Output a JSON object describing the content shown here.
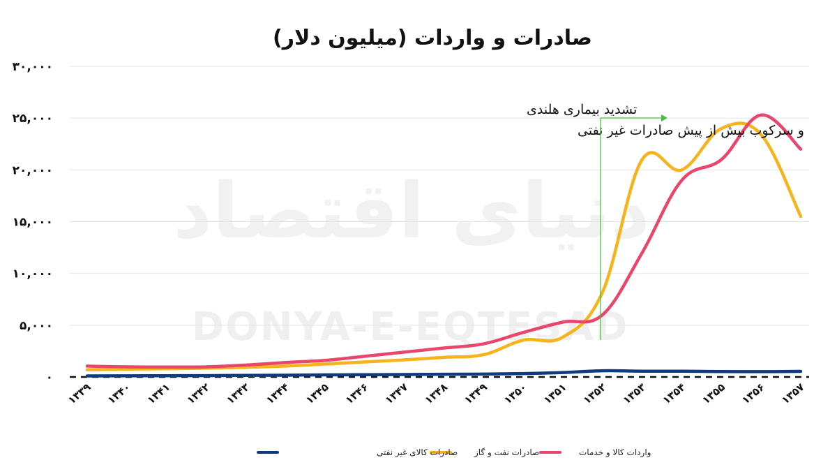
{
  "chart_data": {
    "type": "line",
    "title": "صادرات و واردات (میلیون دلار)",
    "categories": [
      "۱۳۳۹",
      "۱۳۴۰",
      "۱۳۴۱",
      "۱۳۴۲",
      "۱۳۴۳",
      "۱۳۴۴",
      "۱۳۴۵",
      "۱۳۴۶",
      "۱۳۴۷",
      "۱۳۴۸",
      "۱۳۴۹",
      "۱۳۵۰",
      "۱۳۵۱",
      "۱۳۵۲",
      "۱۳۵۳",
      "۱۳۵۴",
      "۱۳۵۵",
      "۱۳۵۶",
      "۱۳۵۷"
    ],
    "ylim": [
      0,
      30000
    ],
    "yticks": [
      0,
      5000,
      10000,
      15000,
      20000,
      25000,
      30000
    ],
    "ytick_labels": [
      "۰",
      "۵,۰۰۰",
      "۱۰,۰۰۰",
      "۱۵,۰۰۰",
      "۲۰,۰۰۰",
      "۲۵,۰۰۰",
      "۳۰,۰۰۰"
    ],
    "grid": true,
    "legend_position": "bottom",
    "series": [
      {
        "name": "صادرات کالای غیر نفتی",
        "color": "#0f3a7d",
        "values": [
          100,
          110,
          120,
          130,
          150,
          170,
          200,
          220,
          240,
          260,
          280,
          330,
          430,
          600,
          560,
          560,
          520,
          510,
          540
        ]
      },
      {
        "name": "صادرات نفت و گاز",
        "color": "#f7b31c",
        "values": [
          700,
          760,
          790,
          850,
          930,
          1050,
          1250,
          1450,
          1650,
          1900,
          2150,
          3550,
          3850,
          8200,
          21000,
          20000,
          24000,
          23400,
          15500
        ]
      },
      {
        "name": "واردات کالا و خدمات",
        "color": "#e8466b",
        "values": [
          1050,
          980,
          960,
          980,
          1150,
          1400,
          1600,
          2000,
          2400,
          2800,
          3200,
          4300,
          5300,
          6000,
          12000,
          19000,
          21000,
          25300,
          22000
        ]
      }
    ],
    "annotation": {
      "lines": [
        "تشدید بیماری هلندی",
        "و سرکوب بیش از پیش صادرات غیر نفتی"
      ],
      "at_category": "۱۳۵۲",
      "arrow_color": "#4cb848"
    }
  },
  "watermark": {
    "arabic": "دنیای اقتصاد",
    "latin": "DONYA-E-EQTESAD"
  }
}
